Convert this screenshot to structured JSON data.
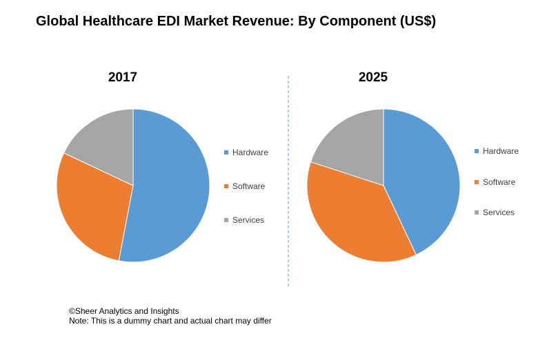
{
  "title": "Global Healthcare EDI Market Revenue: By Component (US$)",
  "colors": {
    "hardware": "#5B9BD5",
    "software": "#ED7D31",
    "services": "#A5A5A5",
    "divider": "#5B9BD5"
  },
  "chart_data": [
    {
      "type": "pie",
      "title": "2017",
      "categories": [
        "Hardware",
        "Software",
        "Services"
      ],
      "values": [
        53,
        29,
        18
      ],
      "colors": [
        "#5B9BD5",
        "#ED7D31",
        "#A5A5A5"
      ],
      "legend": "right"
    },
    {
      "type": "pie",
      "title": "2025",
      "categories": [
        "Hardware",
        "Software",
        "Services"
      ],
      "values": [
        43,
        37,
        20
      ],
      "colors": [
        "#5B9BD5",
        "#ED7D31",
        "#A5A5A5"
      ],
      "legend": "right"
    }
  ],
  "footer": {
    "copyright": "©Sheer Analytics and Insights",
    "note": "Note: This is a dummy chart and actual chart may differ"
  }
}
